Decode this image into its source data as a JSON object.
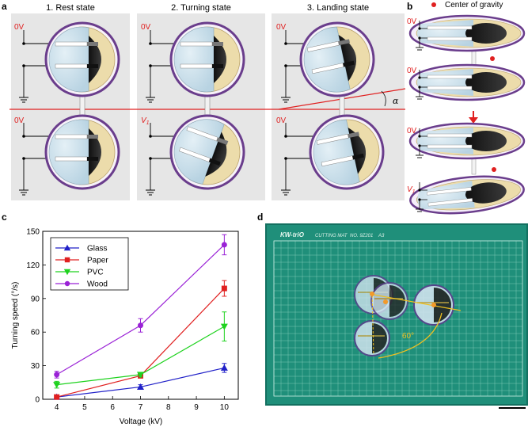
{
  "figure": {
    "panel_a": {
      "label": "a",
      "states": [
        "1. Rest state",
        "2. Turning state",
        "3. Landing state"
      ],
      "top_voltages": [
        "0V",
        "0V",
        "0V"
      ],
      "bottom_voltages": [
        "0V",
        "V",
        "0V"
      ],
      "bottom_voltage_subscript": "1",
      "angle_symbol": "α"
    },
    "panel_b": {
      "label": "b",
      "legend": "Center of gravity",
      "voltages": [
        "0V",
        "0V",
        "0V",
        "V"
      ],
      "subscript": "1"
    },
    "panel_c": {
      "label": "c"
    },
    "panel_d": {
      "label": "d",
      "brand": "KW-triO",
      "mat_title": "CUTTING MAT",
      "mat_no": "NO. 9Z201",
      "mat_size": "A3",
      "angle_label": "60°"
    }
  },
  "chart_data": {
    "type": "line",
    "x": [
      4,
      7,
      10
    ],
    "xlabel": "Voltage (kV)",
    "ylabel": "Turning speed (°/s)",
    "xlim": [
      3.5,
      10.5
    ],
    "ylim": [
      0,
      150
    ],
    "xticks": [
      4,
      5,
      6,
      7,
      8,
      9,
      10
    ],
    "yticks": [
      0,
      30,
      60,
      90,
      120,
      150
    ],
    "legend_position": "top-left",
    "series": [
      {
        "name": "Glass",
        "values": [
          2,
          11,
          28
        ],
        "errors": [
          1,
          2,
          4
        ],
        "color": "#2020c8",
        "marker": "triangle-up"
      },
      {
        "name": "Paper",
        "values": [
          2,
          21,
          99
        ],
        "errors": [
          1,
          2,
          7
        ],
        "color": "#e02020",
        "marker": "square"
      },
      {
        "name": "PVC",
        "values": [
          13,
          22,
          65
        ],
        "errors": [
          3,
          2,
          13
        ],
        "color": "#1ed21e",
        "marker": "triangle-down"
      },
      {
        "name": "Wood",
        "values": [
          22,
          66,
          138
        ],
        "errors": [
          3,
          6,
          9
        ],
        "color": "#9a22d6",
        "marker": "circle"
      }
    ]
  }
}
